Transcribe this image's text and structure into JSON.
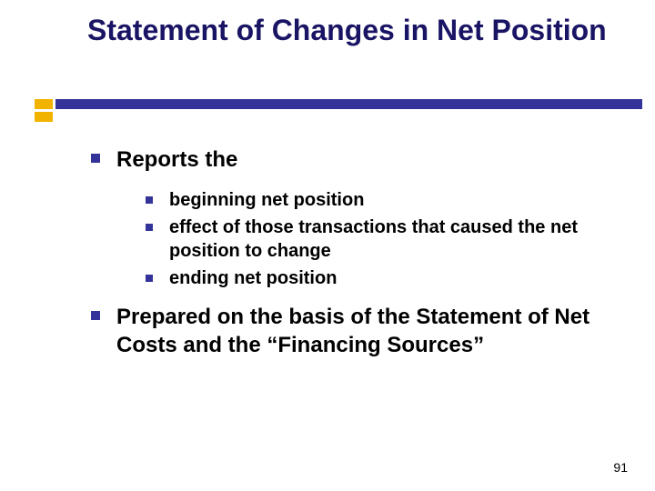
{
  "title": "Statement of Changes in Net Position",
  "colors": {
    "title_color": "#1a1464",
    "bullet_color": "#333399",
    "accent_bar": "#f2b200",
    "long_bar": "#333399",
    "text_color": "#000000",
    "background": "#ffffff"
  },
  "typography": {
    "title_fontsize": 32,
    "l1_fontsize": 24,
    "l2_fontsize": 20,
    "title_weight": "bold",
    "body_weight": "bold",
    "font_family": "Verdana"
  },
  "bullets": [
    {
      "text": "Reports the",
      "sub": [
        "beginning net position",
        "effect of those transactions that caused the net position to change",
        "ending net position"
      ]
    },
    {
      "text": "Prepared on the basis of the Statement of Net Costs and the “Financing Sources”",
      "sub": []
    }
  ],
  "page_number": "91"
}
